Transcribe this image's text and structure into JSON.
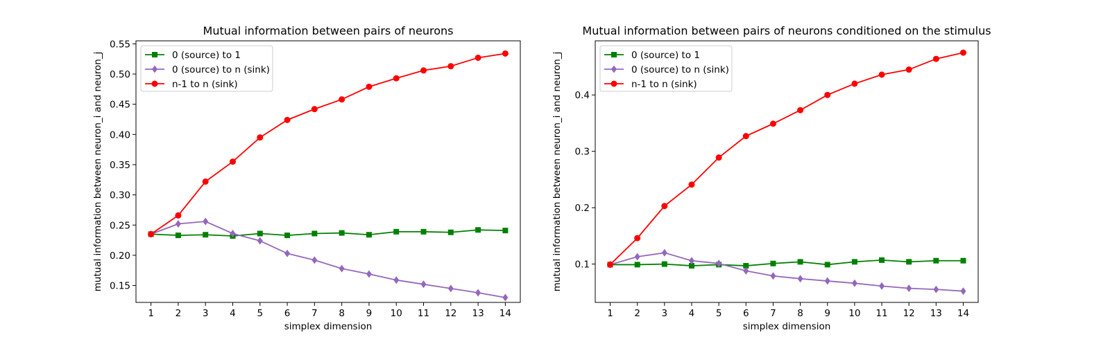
{
  "chart_data": [
    {
      "type": "line",
      "title": "Mutual information between pairs of neurons",
      "xlabel": "simplex dimension",
      "ylabel": "mutual information between neuron_i and neuron_j",
      "x": [
        1,
        2,
        3,
        4,
        5,
        6,
        7,
        8,
        9,
        10,
        11,
        12,
        13,
        14
      ],
      "xlim": [
        0.45,
        14.55
      ],
      "ylim": [
        0.122,
        0.555
      ],
      "yticks": [
        "0.15",
        "0.20",
        "0.25",
        "0.30",
        "0.35",
        "0.40",
        "0.45",
        "0.50",
        "0.55"
      ],
      "grid": false,
      "legend_position": "upper left",
      "series": [
        {
          "name": "0 (source) to 1",
          "color": "#008000",
          "marker": "square",
          "values": [
            0.235,
            0.233,
            0.234,
            0.232,
            0.236,
            0.233,
            0.236,
            0.237,
            0.234,
            0.239,
            0.239,
            0.238,
            0.242,
            0.241
          ]
        },
        {
          "name": "0 (source) to n (sink)",
          "color": "#9467bd",
          "marker": "diamond",
          "values": [
            0.235,
            0.252,
            0.256,
            0.236,
            0.224,
            0.203,
            0.192,
            0.178,
            0.169,
            0.159,
            0.152,
            0.145,
            0.138,
            0.13
          ]
        },
        {
          "name": "n-1 to n (sink)",
          "color": "#ff0000",
          "marker": "circle",
          "values": [
            0.235,
            0.266,
            0.322,
            0.355,
            0.395,
            0.424,
            0.442,
            0.458,
            0.479,
            0.493,
            0.506,
            0.513,
            0.527,
            0.534
          ]
        }
      ]
    },
    {
      "type": "line",
      "title": "Mutual information between pairs of neurons conditioned on the stimulus",
      "xlabel": "simplex dimension",
      "ylabel": "mutual information between neuron_i and neuron_j",
      "x": [
        1,
        2,
        3,
        4,
        5,
        6,
        7,
        8,
        9,
        10,
        11,
        12,
        13,
        14
      ],
      "xlim": [
        0.45,
        14.55
      ],
      "ylim": [
        0.032,
        0.496
      ],
      "yticks": [
        "0.1",
        "0.2",
        "0.3",
        "0.4"
      ],
      "grid": false,
      "legend_position": "upper left",
      "series": [
        {
          "name": "0 (source) to 1",
          "color": "#008000",
          "marker": "square",
          "values": [
            0.099,
            0.099,
            0.1,
            0.097,
            0.099,
            0.097,
            0.101,
            0.104,
            0.099,
            0.104,
            0.107,
            0.104,
            0.106,
            0.106
          ]
        },
        {
          "name": "0 (source) to n (sink)",
          "color": "#9467bd",
          "marker": "diamond",
          "values": [
            0.099,
            0.113,
            0.12,
            0.106,
            0.101,
            0.088,
            0.079,
            0.074,
            0.07,
            0.066,
            0.061,
            0.057,
            0.055,
            0.052
          ]
        },
        {
          "name": "n-1 to n (sink)",
          "color": "#ff0000",
          "marker": "circle",
          "values": [
            0.099,
            0.146,
            0.203,
            0.241,
            0.289,
            0.327,
            0.349,
            0.373,
            0.4,
            0.42,
            0.436,
            0.445,
            0.464,
            0.475
          ]
        }
      ]
    }
  ]
}
